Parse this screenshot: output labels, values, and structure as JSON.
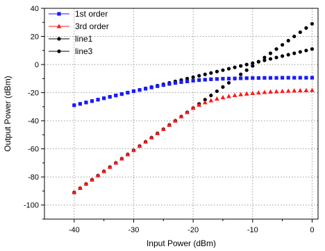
{
  "chart_data": {
    "type": "scatter",
    "title": "",
    "xlabel": "Input Power (dBm)",
    "ylabel": "Output Power (dBm)",
    "xlim": [
      -45,
      1
    ],
    "ylim": [
      -110,
      40
    ],
    "xticks": [
      -40,
      -30,
      -20,
      -10,
      0
    ],
    "yticks": [
      -100,
      -80,
      -60,
      -40,
      -20,
      0,
      20,
      40
    ],
    "grid": true,
    "legend_position": "top-left",
    "series": [
      {
        "name": "1st order",
        "color": "#1a1aff",
        "marker": "square",
        "x": [
          -40,
          -39,
          -38,
          -37,
          -36,
          -35,
          -34,
          -33,
          -32,
          -31,
          -30,
          -29,
          -28,
          -27,
          -26,
          -25,
          -24,
          -23,
          -22,
          -21,
          -20,
          -19,
          -18,
          -17,
          -16,
          -15,
          -14,
          -13,
          -12,
          -11,
          -10,
          -9,
          -8,
          -7,
          -6,
          -5,
          -4,
          -3,
          -2,
          -1,
          0
        ],
        "y": [
          -29,
          -28,
          -27,
          -26,
          -25,
          -24,
          -23,
          -22,
          -21,
          -20,
          -19,
          -18.1,
          -17.2,
          -16.3,
          -15.4,
          -14.6,
          -13.8,
          -13.1,
          -12.5,
          -12,
          -11.5,
          -11.1,
          -10.8,
          -10.5,
          -10.3,
          -10.1,
          -10,
          -9.9,
          -9.8,
          -9.7,
          -9.6,
          -9.6,
          -9.5,
          -9.5,
          -9.5,
          -9.4,
          -9.4,
          -9.4,
          -9.4,
          -9.4,
          -9.4
        ]
      },
      {
        "name": "3rd order",
        "color": "#ff1a1a",
        "marker": "triangle",
        "x": [
          -40,
          -39,
          -38,
          -37,
          -36,
          -35,
          -34,
          -33,
          -32,
          -31,
          -30,
          -29,
          -28,
          -27,
          -26,
          -25,
          -24,
          -23,
          -22,
          -21,
          -20,
          -19,
          -18,
          -17,
          -16,
          -15,
          -14,
          -13,
          -12,
          -11,
          -10,
          -9,
          -8,
          -7,
          -6,
          -5,
          -4,
          -3,
          -2,
          -1,
          0
        ],
        "y": [
          -91,
          -88,
          -85,
          -82,
          -79,
          -76,
          -73,
          -70,
          -67,
          -64,
          -61,
          -58,
          -55,
          -52,
          -49,
          -46,
          -43,
          -40,
          -37,
          -34,
          -31,
          -28.8,
          -27,
          -25.6,
          -24.4,
          -23.4,
          -22.6,
          -21.9,
          -21.3,
          -20.8,
          -20.4,
          -20,
          -19.7,
          -19.4,
          -19.2,
          -19,
          -18.8,
          -18.6,
          -18.5,
          -18.4,
          -18.3
        ]
      },
      {
        "name": "line1",
        "color": "#000000",
        "marker": "circle",
        "x": [
          -40,
          -39,
          -38,
          -37,
          -36,
          -35,
          -34,
          -33,
          -32,
          -31,
          -30,
          -29,
          -28,
          -27,
          -26,
          -25,
          -24,
          -23,
          -22,
          -21,
          -20,
          -19,
          -18,
          -17,
          -16,
          -15,
          -14,
          -13,
          -12,
          -11,
          -10,
          -9,
          -8,
          -7,
          -6,
          -5,
          -4,
          -3,
          -2,
          -1,
          0
        ],
        "y": [
          -29,
          -28,
          -27,
          -26,
          -25,
          -24,
          -23,
          -22,
          -21,
          -20,
          -19,
          -18,
          -17,
          -16,
          -15,
          -14,
          -13,
          -12,
          -11,
          -10,
          -9,
          -8,
          -7,
          -6,
          -5,
          -4,
          -3,
          -2,
          -1,
          0,
          1,
          2,
          3,
          4,
          5,
          6,
          7,
          8,
          9,
          10,
          11
        ]
      },
      {
        "name": "line3",
        "color": "#000000",
        "marker": "circle",
        "x": [
          -40,
          -39,
          -38,
          -37,
          -36,
          -35,
          -34,
          -33,
          -32,
          -31,
          -30,
          -29,
          -28,
          -27,
          -26,
          -25,
          -24,
          -23,
          -22,
          -21,
          -20,
          -19,
          -18,
          -17,
          -16,
          -15,
          -14,
          -13,
          -12,
          -11,
          -10,
          -9,
          -8,
          -7,
          -6,
          -5,
          -4,
          -3,
          -2,
          -1,
          0
        ],
        "y": [
          -91,
          -88,
          -85,
          -82,
          -79,
          -76,
          -73,
          -70,
          -67,
          -64,
          -61,
          -58,
          -55,
          -52,
          -49,
          -46,
          -43,
          -40,
          -37,
          -34,
          -31,
          -28,
          -25,
          -22,
          -19,
          -16,
          -13,
          -10,
          -7,
          -4,
          -1,
          2,
          5,
          8,
          11,
          14,
          17,
          20,
          23,
          26,
          29
        ]
      }
    ]
  }
}
